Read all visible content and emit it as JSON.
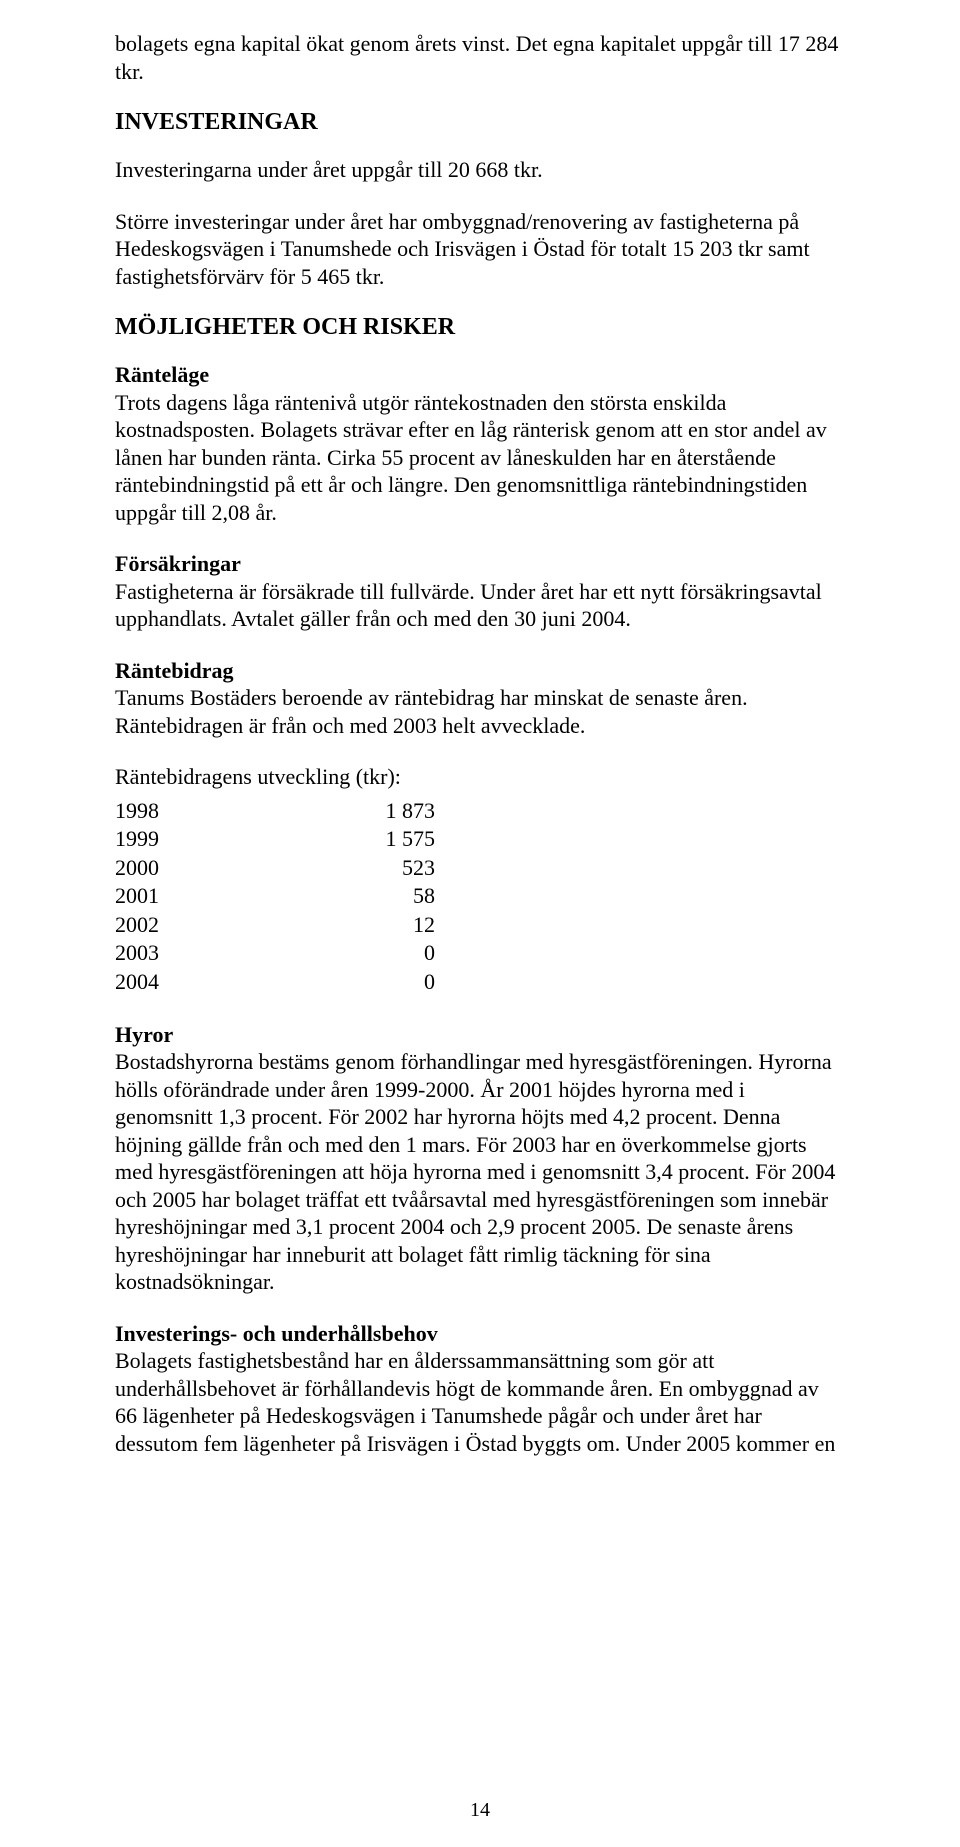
{
  "intro": {
    "p1": "bolagets egna kapital ökat genom årets vinst. Det egna kapitalet uppgår till 17 284 tkr."
  },
  "investeringar": {
    "heading": "INVESTERINGAR",
    "p1": "Investeringarna under året uppgår till 20 668 tkr.",
    "p2": "Större investeringar under året har ombyggnad/renovering av fastigheterna på Hedeskogsvägen i Tanumshede och Irisvägen i Östad för totalt 15 203 tkr samt fastighetsförvärv för 5 465 tkr."
  },
  "mojligheter": {
    "heading": "MÖJLIGHETER OCH RISKER",
    "rantelage": {
      "title": "Ränteläge",
      "body": "Trots dagens låga räntenivå utgör räntekostnaden den största enskilda kostnadsposten. Bolagets strävar efter en låg ränterisk genom att en stor andel av lånen har bunden ränta. Cirka 55 procent av låneskulden har en återstående räntebindningstid på ett år och längre. Den genomsnittliga räntebindningstiden uppgår till 2,08 år."
    },
    "forsakringar": {
      "title": "Försäkringar",
      "body": "Fastigheterna är försäkrade till fullvärde. Under året har ett nytt försäkringsavtal upphandlats. Avtalet gäller från och med den 30 juni 2004."
    },
    "rantebidrag": {
      "title": "Räntebidrag",
      "body": "Tanums Bostäders beroende av räntebidrag har minskat de senaste åren. Räntebidragen är från och med 2003 helt avvecklade.",
      "table_caption": "Räntebidragens utveckling (tkr):",
      "rows": [
        {
          "year": "1998",
          "value": "1 873"
        },
        {
          "year": "1999",
          "value": "1 575"
        },
        {
          "year": "2000",
          "value": "523"
        },
        {
          "year": "2001",
          "value": "58"
        },
        {
          "year": "2002",
          "value": "12"
        },
        {
          "year": "2003",
          "value": "0"
        },
        {
          "year": "2004",
          "value": "0"
        }
      ]
    },
    "hyror": {
      "title": "Hyror",
      "body": "Bostadshyrorna bestäms genom förhandlingar med hyresgästföreningen. Hyrorna hölls oförändrade under åren 1999-2000. År 2001 höjdes hyrorna med i genomsnitt 1,3 procent. För 2002 har hyrorna höjts med 4,2 procent. Denna höjning gällde från och med den 1 mars. För 2003 har en överkommelse gjorts med hyresgästföreningen att höja hyrorna med i genomsnitt 3,4 procent. För 2004 och 2005 har bolaget träffat ett tvåårsavtal med hyresgästföreningen som innebär hyreshöjningar med 3,1 procent 2004 och 2,9 procent 2005. De senaste årens hyreshöjningar har inneburit att bolaget fått rimlig täckning för sina kostnadsökningar."
    },
    "investering_underhall": {
      "title": "Investerings- och underhållsbehov",
      "body": "Bolagets fastighetsbestånd har en ålderssammansättning som gör att underhållsbehovet är förhållandevis högt de kommande åren. En ombyggnad av 66 lägenheter på Hedeskogsvägen i Tanumshede pågår och under året har dessutom fem lägenheter på Irisvägen i Östad byggts om. Under 2005 kommer en"
    }
  },
  "page_number": "14"
}
